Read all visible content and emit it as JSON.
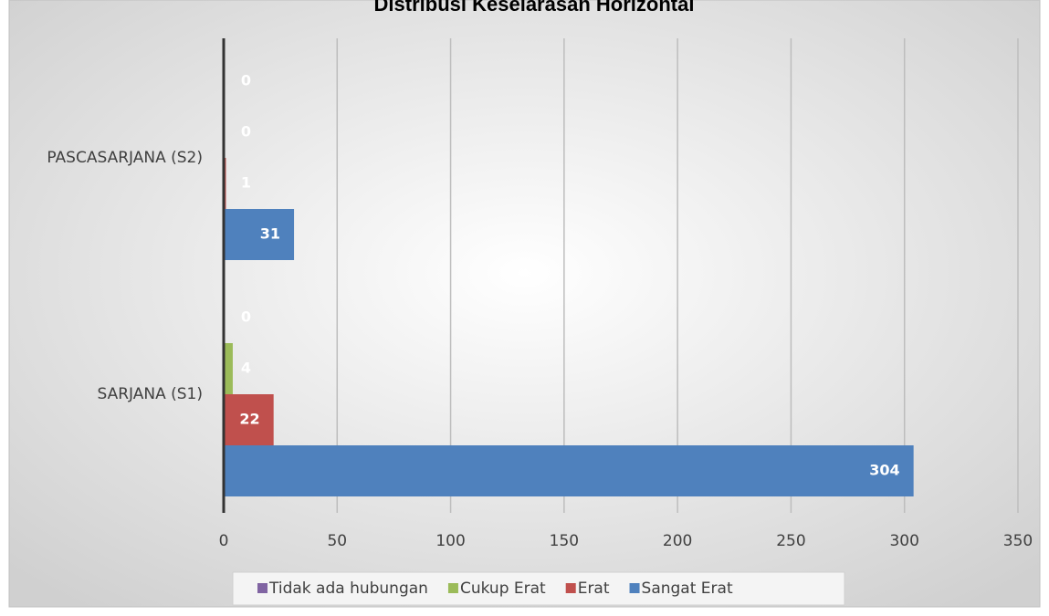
{
  "chart_data": {
    "type": "bar",
    "orientation": "horizontal",
    "title": "Distribusi Keselarasan Horizontal",
    "categories": [
      "PASCASARJANA (S2)",
      "SARJANA (S1)"
    ],
    "series": [
      {
        "name": "Tidak ada hubungan",
        "color": "#8064a2",
        "values": [
          0,
          0
        ]
      },
      {
        "name": "Cukup Erat",
        "color": "#9bbb59",
        "values": [
          0,
          4
        ]
      },
      {
        "name": "Erat",
        "color": "#c0504d",
        "values": [
          1,
          22
        ]
      },
      {
        "name": "Sangat Erat",
        "color": "#4f81bd",
        "values": [
          31,
          304
        ]
      }
    ],
    "xlim": [
      0,
      350
    ],
    "xticks": [
      0,
      50,
      100,
      150,
      200,
      250,
      300,
      350
    ],
    "grid": true,
    "legend": "bottom"
  }
}
